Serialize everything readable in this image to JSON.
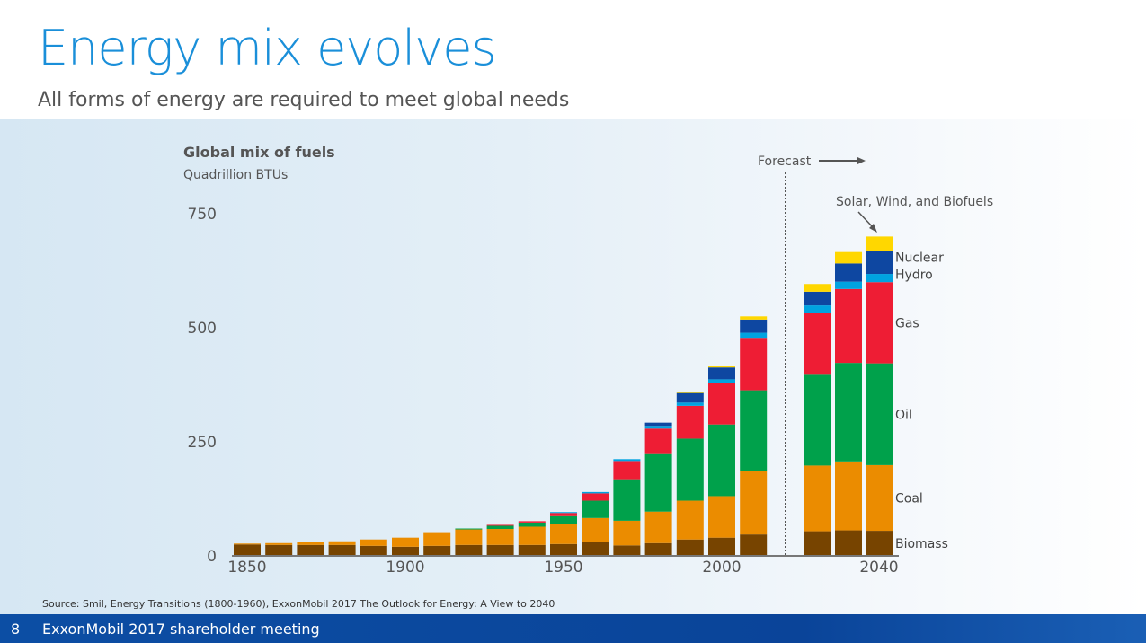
{
  "slide": {
    "title": "Energy mix evolves",
    "subtitle": "All forms of energy are required to meet global needs",
    "source": "Source: Smil, Energy Transitions (1800-1960), ExxonMobil 2017 The Outlook for Energy: A View to 2040",
    "page_number": "8",
    "footer_text": "ExxonMobil 2017 shareholder meeting"
  },
  "chart_data": {
    "type": "bar",
    "stacked": true,
    "title": "Global mix of fuels",
    "ylabel": "Quadrillion BTUs",
    "ylim": [
      0,
      750
    ],
    "yticks": [
      "0",
      "250",
      "500",
      "750"
    ],
    "xtick_labels": [
      "1850",
      "1900",
      "1950",
      "2000",
      "2040"
    ],
    "forecast_label": "Forecast",
    "annotation": "Solar, Wind, and Biofuels",
    "grid": false,
    "categories": [
      1850,
      1860,
      1870,
      1880,
      1890,
      1900,
      1910,
      1920,
      1930,
      1940,
      1950,
      1960,
      1970,
      1980,
      1990,
      2000,
      2010,
      2020,
      2030,
      2040
    ],
    "forecast_from": 2020,
    "series": [
      {
        "name": "Biomass",
        "color": "#774400",
        "values": [
          25,
          24,
          24,
          24,
          22,
          20,
          22,
          24,
          24,
          24,
          26,
          31,
          23,
          28,
          36,
          40,
          47,
          54,
          56,
          55
        ]
      },
      {
        "name": "Coal",
        "color": "#eb8c00",
        "values": [
          2,
          4,
          6,
          8,
          14,
          20,
          30,
          34,
          35,
          40,
          43,
          52,
          54,
          69,
          85,
          91,
          139,
          144,
          151,
          144
        ]
      },
      {
        "name": "Oil",
        "color": "#00a14b",
        "values": [
          0,
          0,
          0,
          0,
          0,
          0,
          0,
          2,
          7,
          9,
          18,
          38,
          91,
          128,
          136,
          157,
          177,
          199,
          216,
          223
        ]
      },
      {
        "name": "Gas",
        "color": "#ee1d34",
        "values": [
          0,
          0,
          0,
          0,
          0,
          0,
          0,
          0,
          2,
          3,
          7,
          16,
          40,
          54,
          72,
          91,
          115,
          136,
          162,
          178
        ]
      },
      {
        "name": "Hydro",
        "color": "#00a3e0",
        "values": [
          0,
          0,
          0,
          0,
          0,
          0,
          0,
          0,
          0,
          0,
          2,
          3,
          4,
          6,
          7,
          8,
          11,
          16,
          16,
          18
        ]
      },
      {
        "name": "Nuclear",
        "color": "#0e47a1",
        "values": [
          0,
          0,
          0,
          0,
          0,
          0,
          0,
          0,
          0,
          0,
          0,
          0,
          0,
          7,
          21,
          26,
          29,
          30,
          40,
          50
        ]
      },
      {
        "name": "Solar, Wind, and Biofuels",
        "color": "#ffd700",
        "values": [
          0,
          0,
          0,
          0,
          0,
          0,
          0,
          0,
          0,
          0,
          0,
          0,
          0,
          0,
          2,
          3,
          7,
          17,
          25,
          32
        ]
      }
    ],
    "legend_labels": [
      "Nuclear",
      "Hydro",
      "Gas",
      "Oil",
      "Coal",
      "Biomass"
    ]
  }
}
